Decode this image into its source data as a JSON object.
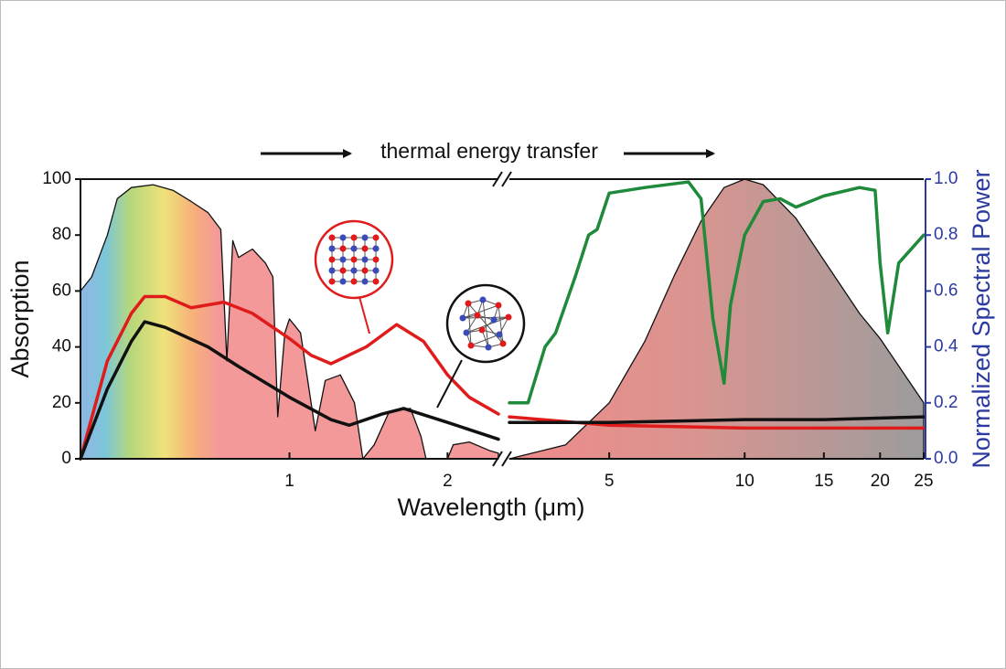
{
  "chart_data": {
    "type": "line",
    "annotation": "thermal energy transfer",
    "xlabel": "Wavelength (μm)",
    "ylabel": "Absorption",
    "y2label": "Normalized Spectral Power",
    "xscale": "log",
    "x_segments": [
      {
        "xlim": [
          0.4,
          2.5
        ],
        "xticks": [
          1,
          2
        ]
      },
      {
        "xlim": [
          3,
          25
        ],
        "xticks": [
          5,
          10,
          15,
          20,
          25
        ]
      }
    ],
    "ylim": [
      0,
      100
    ],
    "yticks": [
      0,
      20,
      40,
      60,
      80,
      100
    ],
    "y2lim": [
      0,
      1
    ],
    "y2ticks": [
      {
        "value": 0,
        "label": "0.0"
      },
      0.2,
      0.4,
      0.6,
      0.8,
      {
        "value": 1,
        "label": "1.0"
      }
    ],
    "y2color": "#2b3aa0",
    "series": [
      {
        "color": "#111111",
        "area": true,
        "x": [
          0.4,
          0.42,
          0.45,
          0.47,
          0.5,
          0.55,
          0.6,
          0.65,
          0.7,
          0.74,
          0.76,
          0.78,
          0.8,
          0.85,
          0.9,
          0.93,
          0.95,
          0.98,
          1.0,
          1.05,
          1.12,
          1.17,
          1.25,
          1.33,
          1.38,
          1.45,
          1.55,
          1.7,
          1.78,
          1.82,
          2.0,
          2.05,
          2.2,
          2.4,
          2.5
        ],
        "values": [
          60,
          65,
          80,
          93,
          97,
          98,
          96,
          92,
          88,
          82,
          35,
          78,
          72,
          75,
          70,
          65,
          15,
          45,
          50,
          45,
          10,
          28,
          30,
          20,
          0,
          5,
          17,
          18,
          8,
          0,
          0,
          5,
          6,
          3,
          2
        ]
      },
      {
        "color": "#111111",
        "area": true,
        "axis": "y2",
        "x": [
          3,
          4,
          5,
          6,
          7,
          8,
          9,
          10,
          11,
          13,
          15,
          18,
          20,
          25
        ],
        "values": [
          0.0,
          0.05,
          0.2,
          0.42,
          0.66,
          0.85,
          0.97,
          1.0,
          0.98,
          0.86,
          0.71,
          0.52,
          0.43,
          0.2
        ]
      },
      {
        "color": "#e01b1b",
        "x": [
          0.4,
          0.45,
          0.5,
          0.53,
          0.58,
          0.65,
          0.75,
          0.85,
          1.0,
          1.1,
          1.2,
          1.4,
          1.6,
          1.8,
          2.0,
          2.2,
          2.5,
          3,
          5,
          10,
          15,
          25
        ],
        "values": [
          0,
          35,
          52,
          58,
          58,
          54,
          56,
          52,
          43,
          37,
          34,
          40,
          48,
          42,
          30,
          22,
          16,
          15,
          12,
          11,
          11,
          11
        ]
      },
      {
        "color": "#111111",
        "x": [
          0.4,
          0.45,
          0.5,
          0.53,
          0.58,
          0.7,
          0.8,
          1.0,
          1.2,
          1.3,
          1.5,
          1.65,
          2.0,
          2.5,
          3,
          5,
          10,
          15,
          25
        ],
        "values": [
          0,
          25,
          42,
          49,
          47,
          40,
          33,
          22,
          14,
          12,
          16,
          18,
          13,
          7,
          13,
          13,
          14,
          14,
          15
        ]
      },
      {
        "color": "#1e8a3a",
        "axis": "y2",
        "x": [
          3,
          3.3,
          3.6,
          3.8,
          4.2,
          4.5,
          4.7,
          5,
          6,
          7.5,
          8,
          8.5,
          9,
          9.3,
          10,
          11,
          12,
          13,
          15,
          18,
          19.5,
          20,
          20.8,
          22,
          25
        ],
        "values": [
          0.2,
          0.2,
          0.4,
          0.45,
          0.65,
          0.8,
          0.82,
          0.95,
          0.97,
          0.99,
          0.93,
          0.5,
          0.27,
          0.55,
          0.8,
          0.92,
          0.93,
          0.9,
          0.94,
          0.97,
          0.96,
          0.7,
          0.45,
          0.7,
          0.8
        ]
      }
    ]
  }
}
